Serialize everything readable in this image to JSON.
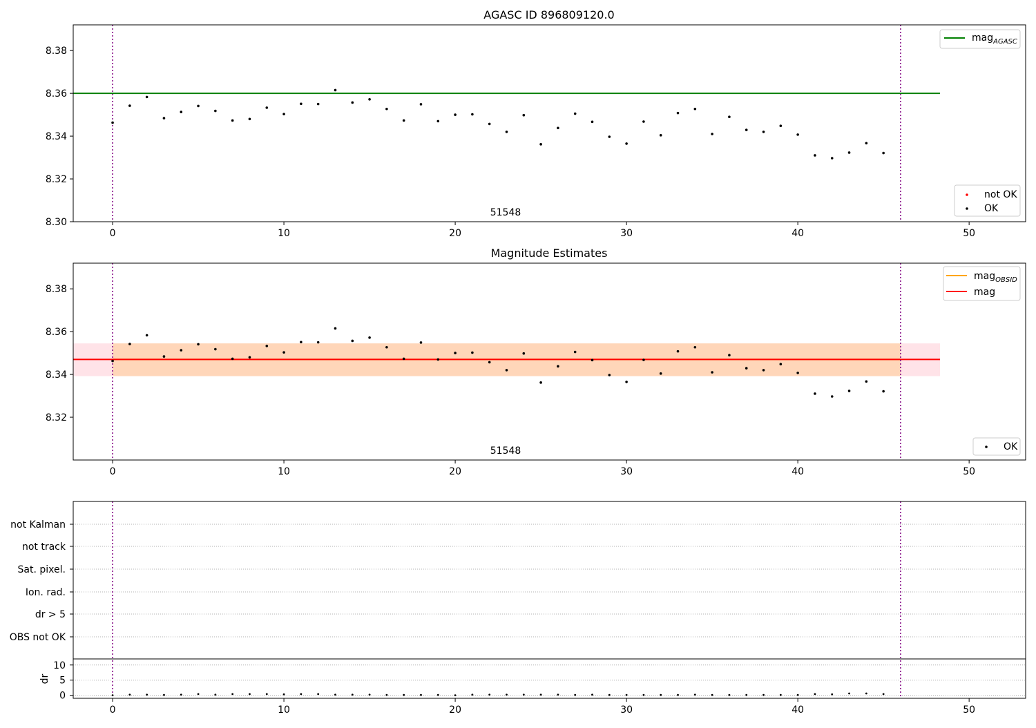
{
  "chart_data": [
    {
      "type": "scatter",
      "title": "AGASC ID 896809120.0",
      "xlim": [
        -2.3,
        53.3
      ],
      "ylim": [
        8.3,
        8.392
      ],
      "xticks": [
        0,
        10,
        20,
        30,
        40,
        50
      ],
      "yticks": [
        8.3,
        8.32,
        8.34,
        8.36,
        8.38
      ],
      "ytick_labels": [
        "8.30",
        "8.32",
        "8.34",
        "8.36",
        "8.38"
      ],
      "obsid_lines": [
        0,
        46
      ],
      "obsid_label": "51548",
      "hline": {
        "name": "mag_AGASC",
        "legend_main": "mag",
        "legend_sub": "AGASC",
        "value": 8.36,
        "x_range": [
          -2.3,
          48.3
        ],
        "color": "#008000"
      },
      "legend_top": [
        {
          "main": "mag",
          "sub": "AGASC",
          "color": "#008000",
          "kind": "line"
        }
      ],
      "legend_bottom": [
        {
          "label": "not OK",
          "color": "#ff0000",
          "kind": "dot"
        },
        {
          "label": "OK",
          "color": "#000000",
          "kind": "dot"
        }
      ]
    },
    {
      "type": "scatter",
      "title": "Magnitude Estimates",
      "xlim": [
        -2.3,
        53.3
      ],
      "ylim": [
        8.3,
        8.392
      ],
      "xticks": [
        0,
        10,
        20,
        30,
        40,
        50
      ],
      "yticks": [
        8.32,
        8.34,
        8.36,
        8.38
      ],
      "ytick_labels": [
        "8.32",
        "8.34",
        "8.36",
        "8.38"
      ],
      "obsid_lines": [
        0,
        46
      ],
      "obsid_label": "51548",
      "mag": {
        "value": 8.347,
        "x_range": [
          -2.3,
          48.3
        ],
        "color": "#ff0000"
      },
      "mag_band": {
        "low": 8.3392,
        "high": 8.3545,
        "x_range": [
          -2.3,
          48.3
        ],
        "color": "#ffc0cb"
      },
      "mag_obsid": {
        "value": 8.347,
        "low": 8.3392,
        "high": 8.3545,
        "x_range": [
          0,
          46
        ],
        "color": "#ffa500"
      },
      "legend_top": [
        {
          "main": "mag",
          "sub": "OBSID",
          "color": "#ffa500",
          "kind": "line"
        },
        {
          "main": "mag",
          "sub": "",
          "color": "#ff0000",
          "kind": "line"
        }
      ],
      "legend_bottom": [
        {
          "label": "OK",
          "color": "#000000",
          "kind": "dot"
        }
      ]
    },
    {
      "type": "scatter",
      "title": "",
      "xlim": [
        -2.3,
        53.3
      ],
      "xticks": [
        0,
        10,
        20,
        30,
        40,
        50
      ],
      "flag_labels": [
        "not Kalman",
        "not track",
        "Sat. pixel.",
        "Ion. rad.",
        "dr > 5",
        "OBS not OK"
      ],
      "obsid_lines": [
        0,
        46
      ],
      "dr": {
        "ylabel": "dr",
        "ylim": [
          -1,
          12
        ],
        "yticks": [
          0,
          5,
          10
        ],
        "values": [
          0.0,
          0.2,
          0.2,
          0.1,
          0.2,
          0.4,
          0.2,
          0.4,
          0.4,
          0.4,
          0.3,
          0.4,
          0.4,
          0.2,
          0.2,
          0.2,
          0.1,
          0.1,
          0.1,
          0.1,
          0.0,
          0.2,
          0.2,
          0.2,
          0.2,
          0.2,
          0.2,
          0.1,
          0.2,
          0.1,
          0.1,
          0.1,
          0.1,
          0.1,
          0.2,
          0.1,
          0.1,
          0.1,
          0.1,
          0.1,
          0.1,
          0.4,
          0.3,
          0.6,
          0.6,
          0.4
        ]
      }
    }
  ],
  "series": {
    "x": [
      0,
      1,
      2,
      3,
      4,
      5,
      6,
      7,
      8,
      9,
      10,
      11,
      12,
      13,
      14,
      15,
      16,
      17,
      18,
      19,
      20,
      21,
      22,
      23,
      24,
      25,
      26,
      27,
      28,
      29,
      30,
      31,
      32,
      33,
      34,
      35,
      36,
      37,
      38,
      39,
      40,
      41,
      42,
      43,
      44,
      45
    ],
    "mag": [
      8.3463,
      8.3542,
      8.3583,
      8.3484,
      8.3513,
      8.3541,
      8.3518,
      8.3473,
      8.348,
      8.3533,
      8.3503,
      8.3551,
      8.355,
      8.3615,
      8.3557,
      8.3572,
      8.3527,
      8.3473,
      8.3549,
      8.347,
      8.35,
      8.3502,
      8.3457,
      8.342,
      8.3498,
      8.3362,
      8.3438,
      8.3505,
      8.3467,
      8.3397,
      8.3365,
      8.3468,
      8.3404,
      8.3508,
      8.3527,
      8.341,
      8.349,
      8.3429,
      8.342,
      8.3448,
      8.3407,
      8.331,
      8.3297,
      8.3323,
      8.3367,
      8.3321
    ]
  }
}
